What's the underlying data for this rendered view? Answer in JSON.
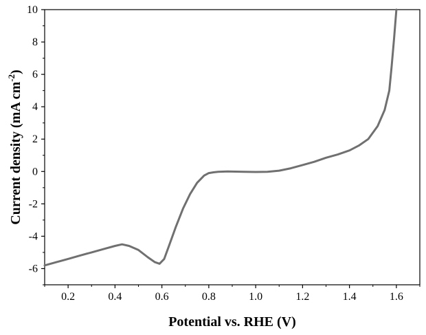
{
  "chart_data": {
    "type": "line",
    "title": "",
    "xlabel": "Potential vs. RHE (V)",
    "ylabel_main": "Current density (mA cm",
    "ylabel_sup": "-2",
    "ylabel_close": ")",
    "xlim": [
      0.1,
      1.7
    ],
    "ylim": [
      -7,
      10
    ],
    "xticks": [
      0.2,
      0.4,
      0.6,
      0.8,
      1.0,
      1.2,
      1.4,
      1.6
    ],
    "xtick_labels": [
      "0.2",
      "0.4",
      "0.6",
      "0.8",
      "1.0",
      "1.2",
      "1.4",
      "1.6"
    ],
    "yticks": [
      -6,
      -4,
      -2,
      0,
      2,
      4,
      6,
      8,
      10
    ],
    "ytick_labels": [
      "-6",
      "-4",
      "-2",
      "0",
      "2",
      "4",
      "6",
      "8",
      "10"
    ],
    "grid": false,
    "line_color": "#707070",
    "series": [
      {
        "x": [
          0.1,
          0.15,
          0.2,
          0.25,
          0.3,
          0.35,
          0.4,
          0.43,
          0.46,
          0.5,
          0.54,
          0.57,
          0.59,
          0.61,
          0.63,
          0.66,
          0.69,
          0.72,
          0.75,
          0.78,
          0.8,
          0.82,
          0.84,
          0.88,
          0.95,
          1.0,
          1.05,
          1.1,
          1.15,
          1.2,
          1.25,
          1.3,
          1.35,
          1.4,
          1.44,
          1.48,
          1.52,
          1.55,
          1.57,
          1.58,
          1.59,
          1.6
        ],
        "y": [
          -5.8,
          -5.6,
          -5.4,
          -5.2,
          -5.0,
          -4.8,
          -4.6,
          -4.5,
          -4.6,
          -4.85,
          -5.3,
          -5.6,
          -5.7,
          -5.4,
          -4.6,
          -3.4,
          -2.3,
          -1.4,
          -0.7,
          -0.25,
          -0.1,
          -0.05,
          -0.02,
          0.0,
          -0.02,
          -0.03,
          -0.02,
          0.05,
          0.2,
          0.4,
          0.6,
          0.85,
          1.05,
          1.3,
          1.6,
          2.0,
          2.8,
          3.8,
          5.0,
          6.5,
          8.2,
          10.0
        ]
      }
    ]
  }
}
